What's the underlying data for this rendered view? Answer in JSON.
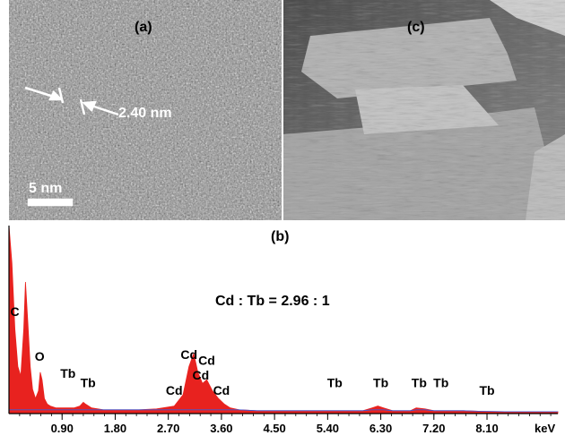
{
  "panel_a": {
    "label": "(a)",
    "measurement": "2.40 nm",
    "scale_bar": "5 nm"
  },
  "panel_c": {
    "label": "(c)"
  },
  "chart_data": {
    "type": "area",
    "panel_label": "(b)",
    "annotation": "Cd : Tb = 2.96 : 1",
    "xlabel": "keV",
    "ylabel": "",
    "xlim": [
      0,
      9.3
    ],
    "ylim": [
      0,
      100
    ],
    "xticks": [
      0.9,
      1.8,
      2.7,
      3.6,
      4.5,
      5.4,
      6.3,
      7.2,
      8.1
    ],
    "xtick_labels": [
      "0.90",
      "1.80",
      "2.70",
      "3.60",
      "4.50",
      "5.40",
      "6.30",
      "7.20",
      "8.10"
    ],
    "grid": false,
    "series": [
      {
        "color": "#e8221f",
        "x": [
          0.0,
          0.05,
          0.1,
          0.15,
          0.2,
          0.25,
          0.28,
          0.32,
          0.36,
          0.4,
          0.45,
          0.5,
          0.53,
          0.56,
          0.6,
          0.65,
          0.7,
          0.8,
          0.9,
          1.0,
          1.1,
          1.2,
          1.26,
          1.3,
          1.4,
          1.6,
          1.8,
          2.0,
          2.2,
          2.5,
          2.8,
          2.95,
          3.05,
          3.13,
          3.2,
          3.28,
          3.35,
          3.45,
          3.55,
          3.65,
          3.75,
          3.9,
          4.2,
          4.5,
          4.8,
          5.1,
          5.4,
          5.7,
          6.0,
          6.15,
          6.25,
          6.35,
          6.5,
          6.8,
          6.9,
          7.05,
          7.2,
          7.4,
          7.7,
          8.0,
          8.4,
          8.8,
          9.3
        ],
        "y": [
          100,
          80,
          45,
          25,
          20,
          45,
          70,
          48,
          25,
          13,
          8,
          12,
          22,
          18,
          8,
          5,
          4,
          3,
          3,
          3,
          3,
          4,
          6,
          5,
          3,
          2,
          2,
          2,
          2,
          2.5,
          4,
          10,
          25,
          32,
          22,
          16,
          18,
          12,
          8,
          5,
          3,
          2,
          1.5,
          1.5,
          1.5,
          1.5,
          1.5,
          1.5,
          1.5,
          3,
          4,
          3,
          1.5,
          1.5,
          3,
          2.5,
          1.5,
          1.5,
          1.5,
          1.2,
          1,
          1,
          1
        ]
      }
    ],
    "peak_labels": [
      {
        "text": "C",
        "x": 0.1,
        "y": 52
      },
      {
        "text": "O",
        "x": 0.52,
        "y": 28
      },
      {
        "text": "Tb",
        "x": 1.0,
        "y": 19
      },
      {
        "text": "Tb",
        "x": 1.34,
        "y": 14
      },
      {
        "text": "Cd",
        "x": 2.8,
        "y": 10
      },
      {
        "text": "Cd",
        "x": 3.05,
        "y": 29
      },
      {
        "text": "Cd",
        "x": 3.35,
        "y": 26
      },
      {
        "text": "Cd",
        "x": 3.25,
        "y": 18
      },
      {
        "text": "Cd",
        "x": 3.6,
        "y": 10
      },
      {
        "text": "Tb",
        "x": 5.52,
        "y": 14
      },
      {
        "text": "Tb",
        "x": 6.3,
        "y": 14
      },
      {
        "text": "Tb",
        "x": 6.95,
        "y": 14
      },
      {
        "text": "Tb",
        "x": 7.32,
        "y": 14
      },
      {
        "text": "Tb",
        "x": 8.1,
        "y": 10
      }
    ]
  }
}
